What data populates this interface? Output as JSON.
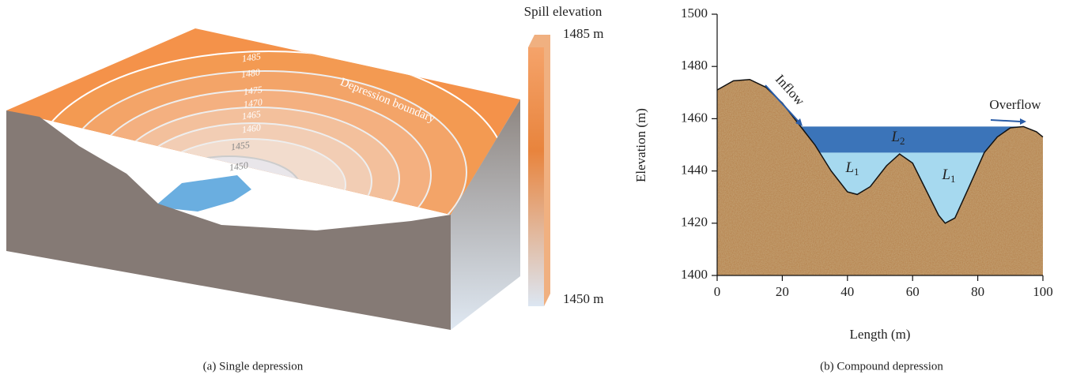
{
  "panel_a": {
    "colorbar_title": "Spill elevation",
    "colorbar_max": "1485 m",
    "colorbar_min": "1450 m",
    "contour_labels": [
      "1485",
      "1480",
      "1475",
      "1470",
      "1465",
      "1460",
      "1455",
      "1450"
    ],
    "boundary_label": "Depression boundary",
    "caption": "(a) Single depression"
  },
  "chart_data": {
    "type": "area",
    "xlabel": "Length (m)",
    "ylabel": "Elevation (m)",
    "xlim": [
      0,
      100
    ],
    "ylim": [
      1400,
      1500
    ],
    "xticks": [
      0,
      20,
      40,
      60,
      80,
      100
    ],
    "yticks": [
      1400,
      1420,
      1440,
      1460,
      1480,
      1500
    ],
    "x": [
      0,
      5,
      10,
      15,
      20,
      25,
      30,
      35,
      40,
      43,
      47,
      52,
      56,
      60,
      64,
      68,
      70,
      73,
      77,
      82,
      86,
      90,
      94,
      98,
      100
    ],
    "values": [
      1471,
      1474.5,
      1475,
      1472,
      1466,
      1458,
      1450,
      1440,
      1432,
      1431,
      1434,
      1442,
      1446.5,
      1443,
      1433,
      1423,
      1420,
      1422,
      1433,
      1447,
      1453,
      1456.5,
      1457,
      1455,
      1453
    ],
    "color": "#b5804a",
    "water_levels": [
      {
        "label": "L",
        "subscript": "2",
        "value": 1457,
        "color": "#3b74b9"
      },
      {
        "label": "L",
        "subscript": "1",
        "value": 1447,
        "color": "#a6d9ef"
      }
    ],
    "annotations": [
      "Inflow",
      "Overflow"
    ],
    "caption": "(b) Compound depression"
  }
}
